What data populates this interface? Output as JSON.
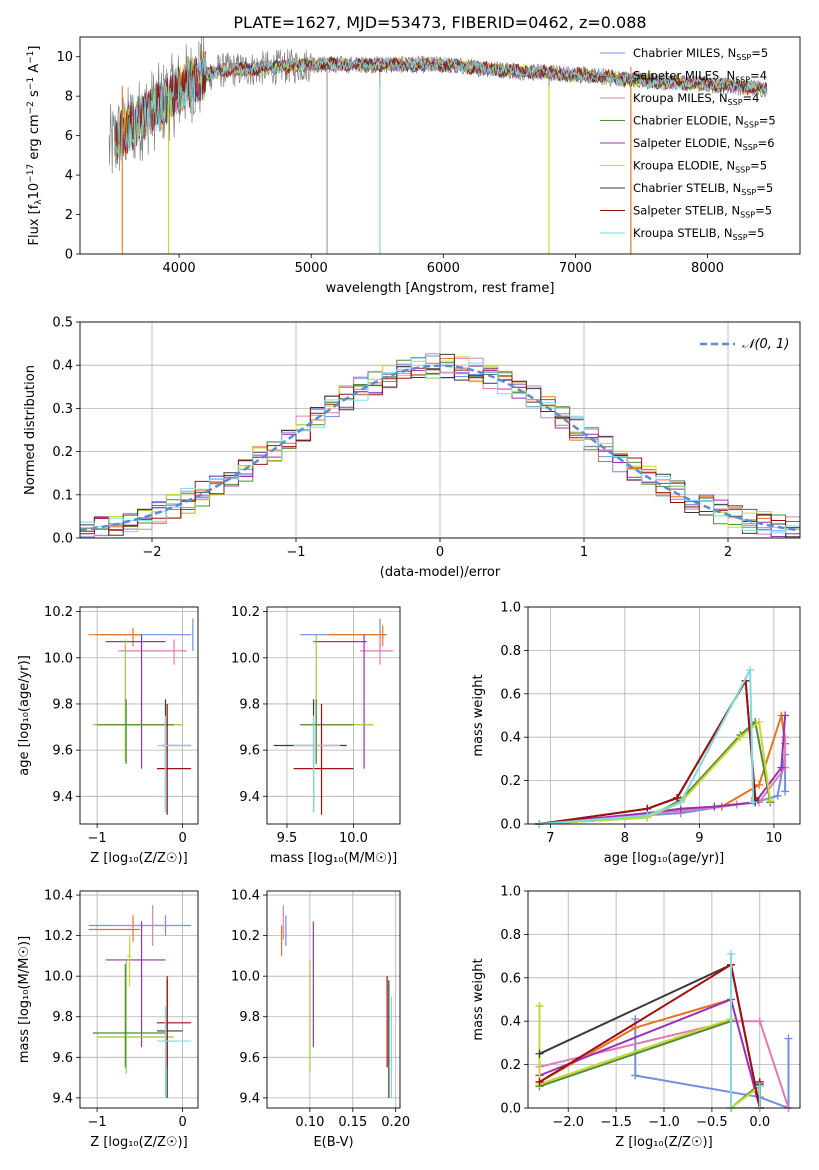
{
  "title": "PLATE=1627, MJD=53473, FIBERID=0462, z=0.088",
  "colors": {
    "c0": "#6f8fe0",
    "c1": "#e8731f",
    "c2": "#e07bb4",
    "c3": "#4f8a3e",
    "c4": "#9b30b8",
    "c5": "#c8d830",
    "c6": "#3a3a3a",
    "c7": "#a01010",
    "c8": "#7ddbe0",
    "c9": "#9acd32",
    "grey": "#808080"
  },
  "spectrum_legend": [
    {
      "model": "Chabrier MILES",
      "n": "5"
    },
    {
      "model": "Salpeter MILES",
      "n": "4"
    },
    {
      "model": "Kroupa MILES",
      "n": "4"
    },
    {
      "model": "Chabrier ELODIE",
      "n": "5"
    },
    {
      "model": "Salpeter ELODIE",
      "n": "6"
    },
    {
      "model": "Kroupa ELODIE",
      "n": "5"
    },
    {
      "model": "Chabrier STELIB",
      "n": "5"
    },
    {
      "model": "Salpeter STELIB",
      "n": "5"
    },
    {
      "model": "Kroupa STELIB",
      "n": "5"
    }
  ],
  "chart_data": [
    {
      "type": "line",
      "panel": "spectrum",
      "title": "PLATE=1627, MJD=53473, FIBERID=0462, z=0.088",
      "xlabel": "wavelength [Angstrom, rest frame]",
      "ylabel_main": "Flux [f",
      "ylabel_rest": "10",
      "ylabel_exp1": "−17",
      "ylabel_unit": " erg cm",
      "ylabel_exp2": "−2",
      "ylabel_s": " s",
      "ylabel_exp3": "−1",
      "ylabel_A": " A",
      "ylabel_exp4": "−1",
      "ylabel_close": "]",
      "xlim": [
        3250,
        8700
      ],
      "ylim": [
        0,
        11
      ],
      "xticks": [
        4000,
        5000,
        6000,
        7000,
        8000
      ],
      "yticks": [
        0,
        2,
        4,
        6,
        8,
        10
      ],
      "continuum": {
        "x": [
          3450,
          3600,
          3800,
          3950,
          4100,
          4300,
          4600,
          5000,
          5500,
          6000,
          6500,
          7000,
          7500,
          8000,
          8400
        ],
        "y": [
          5.2,
          6.3,
          7.3,
          8.0,
          8.8,
          9.3,
          9.4,
          9.6,
          9.6,
          9.6,
          9.3,
          9.1,
          8.8,
          8.6,
          8.4
        ]
      },
      "data_spikes_x": [
        5120,
        5520,
        6800,
        7420
      ]
    },
    {
      "type": "bar",
      "panel": "residual-histogram",
      "xlabel": "(data-model)/error",
      "ylabel": "Normed distribution",
      "xlim": [
        -2.5,
        2.5
      ],
      "ylim": [
        0,
        0.5
      ],
      "xticks": [
        -2,
        -1,
        0,
        1,
        2
      ],
      "yticks": [
        0.0,
        0.1,
        0.2,
        0.3,
        0.4,
        0.5
      ],
      "legend": "𝒩(0, 1)",
      "bins": [
        -2.5,
        2.5,
        50
      ],
      "series_values": [
        [
          0.03,
          0.04,
          0.04,
          0.05,
          0.06,
          0.07,
          0.09,
          0.11,
          0.13,
          0.16,
          0.19,
          0.22,
          0.25,
          0.28,
          0.31,
          0.33,
          0.35,
          0.37,
          0.38,
          0.39,
          0.4,
          0.4,
          0.39,
          0.38,
          0.37,
          0.35,
          0.33,
          0.31,
          0.28,
          0.25,
          0.22,
          0.19,
          0.16,
          0.13,
          0.11,
          0.09,
          0.07,
          0.06,
          0.05,
          0.04,
          0.03,
          0.03,
          0.02,
          0.02,
          0.02,
          0.02,
          0.02,
          0.02,
          0.02,
          0.02
        ]
      ]
    },
    {
      "type": "scatter",
      "panel": "age-vs-metallicity",
      "xlabel": "Z [log₁₀(Z/Z☉)]",
      "ylabel": "age  [log₁₀(age/yr)]",
      "xlim": [
        -1.2,
        0.18
      ],
      "ylim": [
        9.28,
        10.22
      ],
      "xticks": [
        -1,
        0
      ],
      "yticks": [
        9.4,
        9.6,
        9.8,
        10.0,
        10.2
      ]
    },
    {
      "type": "scatter",
      "panel": "age-vs-mass",
      "xlabel": "mass [log₁₀(M/M☉)]",
      "ylabel": "",
      "xlim": [
        9.35,
        10.35
      ],
      "ylim": [
        9.28,
        10.22
      ],
      "xticks": [
        9.5,
        10.0
      ],
      "yticks": [
        9.4,
        9.6,
        9.8,
        10.0,
        10.2
      ]
    },
    {
      "type": "line",
      "panel": "weight-vs-age",
      "xlabel": "age  [log₁₀(age/yr)]",
      "ylabel": "mass weight",
      "xlim": [
        6.7,
        10.35
      ],
      "ylim": [
        0,
        1
      ],
      "xticks": [
        7,
        8,
        9,
        10
      ],
      "yticks": [
        0.0,
        0.2,
        0.4,
        0.6,
        0.8,
        1.0
      ]
    },
    {
      "type": "scatter",
      "panel": "mass-vs-metallicity",
      "xlabel": "Z [log₁₀(Z/Z☉)]",
      "ylabel": "mass [log₁₀(M/M☉)]",
      "xlim": [
        -1.2,
        0.18
      ],
      "ylim": [
        9.35,
        10.42
      ],
      "xticks": [
        -1,
        0
      ],
      "yticks": [
        9.4,
        9.6,
        9.8,
        10.0,
        10.2,
        10.4
      ]
    },
    {
      "type": "scatter",
      "panel": "mass-vs-ebv",
      "xlabel": "E(B-V)",
      "ylabel": "",
      "xlim": [
        0.05,
        0.205
      ],
      "ylim": [
        9.35,
        10.42
      ],
      "xticks": [
        0.1,
        0.15,
        0.2
      ],
      "yticks": [
        9.4,
        9.6,
        9.8,
        10.0,
        10.2,
        10.4
      ]
    },
    {
      "type": "line",
      "panel": "weight-vs-metallicity",
      "xlabel": "Z [log₁₀(Z/Z☉)]",
      "ylabel": "mass weight",
      "xlim": [
        -2.42,
        0.42
      ],
      "ylim": [
        0,
        1
      ],
      "xticks": [
        -2.0,
        -1.5,
        -1.0,
        -0.5,
        0.0
      ],
      "yticks": [
        0.0,
        0.2,
        0.4,
        0.6,
        0.8,
        1.0
      ]
    }
  ],
  "crosses_age_Z": [
    {
      "c": "c0",
      "x": 0.12,
      "y": 10.1,
      "xe": [
        -1.0,
        0.1
      ],
      "ye": [
        10.03,
        10.17
      ]
    },
    {
      "c": "c1",
      "x": -0.58,
      "y": 10.1,
      "xe": [
        -1.1,
        -0.5
      ],
      "ye": [
        10.05,
        10.13
      ]
    },
    {
      "c": "c2",
      "x": -0.1,
      "y": 10.03,
      "xe": [
        -0.75,
        0.05
      ],
      "ye": [
        9.97,
        10.08
      ]
    },
    {
      "c": "c4",
      "x": -0.48,
      "y": 10.07,
      "xe": [
        -0.9,
        -0.2
      ],
      "ye": [
        9.52,
        10.1
      ]
    },
    {
      "c": "c9",
      "x": -0.67,
      "y": 9.71,
      "xe": [
        -1.05,
        0.0
      ],
      "ye": [
        9.55,
        10.08
      ]
    },
    {
      "c": "c3",
      "x": -0.66,
      "y": 9.71,
      "xe": [
        -1.0,
        -0.1
      ],
      "ye": [
        9.54,
        9.82
      ]
    },
    {
      "c": "c6",
      "x": -0.2,
      "y": 9.62,
      "xe": [
        -0.25,
        0.1
      ],
      "ye": [
        9.33,
        9.82
      ]
    },
    {
      "c": "c7",
      "x": -0.18,
      "y": 9.52,
      "xe": [
        -0.3,
        0.1
      ],
      "ye": [
        9.32,
        9.8
      ]
    },
    {
      "c": "c8",
      "x": -0.2,
      "y": 9.62,
      "xe": [
        -0.3,
        0.1
      ],
      "ye": [
        9.33,
        9.75
      ]
    }
  ],
  "crosses_age_mass": [
    {
      "c": "c0",
      "x": 10.2,
      "y": 10.1,
      "xe": [
        9.6,
        10.25
      ],
      "ye": [
        10.03,
        10.17
      ]
    },
    {
      "c": "c1",
      "x": 10.22,
      "y": 10.1,
      "xe": [
        9.8,
        10.25
      ],
      "ye": [
        10.05,
        10.14
      ]
    },
    {
      "c": "c2",
      "x": 10.2,
      "y": 10.03,
      "xe": [
        10.05,
        10.3
      ],
      "ye": [
        9.97,
        10.1
      ]
    },
    {
      "c": "c4",
      "x": 10.08,
      "y": 10.07,
      "xe": [
        9.7,
        10.1
      ],
      "ye": [
        9.52,
        10.1
      ]
    },
    {
      "c": "c9",
      "x": 9.72,
      "y": 9.71,
      "xe": [
        9.6,
        10.15
      ],
      "ye": [
        9.55,
        10.1
      ]
    },
    {
      "c": "c3",
      "x": 9.72,
      "y": 9.71,
      "xe": [
        9.6,
        10.0
      ],
      "ye": [
        9.54,
        9.82
      ]
    },
    {
      "c": "c6",
      "x": 9.7,
      "y": 9.62,
      "xe": [
        9.4,
        9.95
      ],
      "ye": [
        9.33,
        9.82
      ]
    },
    {
      "c": "c7",
      "x": 9.76,
      "y": 9.52,
      "xe": [
        9.55,
        10.0
      ],
      "ye": [
        9.32,
        9.8
      ]
    },
    {
      "c": "c8",
      "x": 9.7,
      "y": 9.62,
      "xe": [
        9.55,
        9.9
      ],
      "ye": [
        9.33,
        9.75
      ]
    }
  ],
  "weights_age": [
    {
      "c": "c0",
      "x": [
        6.85,
        8.3,
        8.75,
        9.3,
        9.75,
        10.05,
        10.15,
        10.15
      ],
      "y": [
        0.0,
        0.04,
        0.05,
        0.08,
        0.1,
        0.13,
        0.32,
        0.15
      ]
    },
    {
      "c": "c1",
      "x": [
        6.85,
        8.3,
        8.75,
        9.3,
        9.8,
        10.1,
        10.15
      ],
      "y": [
        0.0,
        0.05,
        0.07,
        0.08,
        0.18,
        0.5,
        0.37
      ]
    },
    {
      "c": "c2",
      "x": [
        6.85,
        8.3,
        8.75,
        9.5,
        9.8,
        10.15,
        10.15
      ],
      "y": [
        0.0,
        0.05,
        0.06,
        0.09,
        0.1,
        0.26,
        0.4
      ]
    },
    {
      "c": "c3",
      "x": [
        6.85,
        8.3,
        8.75,
        9.55,
        9.75,
        9.95
      ],
      "y": [
        0.0,
        0.03,
        0.11,
        0.41,
        0.47,
        0.1
      ]
    },
    {
      "c": "c4",
      "x": [
        6.85,
        8.3,
        8.75,
        9.2,
        9.75,
        10.1,
        10.15
      ],
      "y": [
        0.0,
        0.05,
        0.07,
        0.08,
        0.1,
        0.26,
        0.5
      ]
    },
    {
      "c": "c5",
      "x": [
        6.85,
        8.3,
        8.75,
        9.55,
        9.8,
        9.95
      ],
      "y": [
        0.0,
        0.03,
        0.1,
        0.4,
        0.47,
        0.11
      ]
    },
    {
      "c": "c6",
      "x": [
        6.85,
        8.3,
        8.7,
        9.62,
        9.75
      ],
      "y": [
        0.0,
        0.07,
        0.12,
        0.66,
        0.11
      ]
    },
    {
      "c": "c7",
      "x": [
        6.85,
        8.3,
        8.7,
        9.62,
        9.75
      ],
      "y": [
        0.0,
        0.07,
        0.12,
        0.66,
        0.12
      ]
    },
    {
      "c": "c8",
      "x": [
        6.85,
        8.3,
        8.75,
        9.68,
        9.72
      ],
      "y": [
        0.0,
        0.04,
        0.1,
        0.71,
        0.1
      ]
    }
  ],
  "crosses_mass_Z": [
    {
      "c": "c0",
      "x": -0.2,
      "y": 10.25,
      "xe": [
        -1.1,
        0.1
      ],
      "ye": [
        10.2,
        10.3
      ]
    },
    {
      "c": "c1",
      "x": -0.58,
      "y": 10.23,
      "xe": [
        -1.1,
        -0.5
      ],
      "ye": [
        10.17,
        10.3
      ]
    },
    {
      "c": "c2",
      "x": -0.35,
      "y": 10.25,
      "xe": [
        -0.85,
        0.0
      ],
      "ye": [
        10.15,
        10.35
      ]
    },
    {
      "c": "c4",
      "x": -0.48,
      "y": 10.08,
      "xe": [
        -0.9,
        -0.2
      ],
      "ye": [
        9.65,
        10.27
      ]
    },
    {
      "c": "c5",
      "x": -0.62,
      "y": 10.1,
      "xe": [
        -0.65,
        -0.6
      ],
      "ye": [
        9.95,
        10.2
      ]
    },
    {
      "c": "c9",
      "x": -0.66,
      "y": 9.7,
      "xe": [
        -1.0,
        -0.1
      ],
      "ye": [
        9.52,
        10.08
      ]
    },
    {
      "c": "c3",
      "x": -0.67,
      "y": 9.72,
      "xe": [
        -1.05,
        -0.2
      ],
      "ye": [
        9.55,
        10.06
      ]
    },
    {
      "c": "c6",
      "x": -0.18,
      "y": 9.73,
      "xe": [
        -0.3,
        0.0
      ],
      "ye": [
        9.4,
        9.98
      ]
    },
    {
      "c": "c7",
      "x": -0.18,
      "y": 9.77,
      "xe": [
        -0.3,
        0.1
      ],
      "ye": [
        9.55,
        10.0
      ]
    },
    {
      "c": "c8",
      "x": -0.2,
      "y": 9.68,
      "xe": [
        -0.3,
        0.1
      ],
      "ye": [
        9.4,
        9.85
      ]
    }
  ],
  "crosses_mass_ebv": [
    {
      "c": "c1",
      "x": 0.067,
      "y": 10.2,
      "ye": [
        10.1,
        10.25
      ]
    },
    {
      "c": "c2",
      "x": 0.069,
      "y": 10.27,
      "ye": [
        10.18,
        10.35
      ]
    },
    {
      "c": "c0",
      "x": 0.072,
      "y": 10.24,
      "ye": [
        10.15,
        10.3
      ]
    },
    {
      "c": "c4",
      "x": 0.104,
      "y": 10.08,
      "ye": [
        9.65,
        10.27
      ]
    },
    {
      "c": "c9",
      "x": 0.1,
      "y": 9.72,
      "ye": [
        9.53,
        10.08
      ]
    },
    {
      "c": "c7",
      "x": 0.19,
      "y": 9.77,
      "ye": [
        9.55,
        10.0
      ]
    },
    {
      "c": "c6",
      "x": 0.192,
      "y": 9.73,
      "ye": [
        9.4,
        9.98
      ]
    },
    {
      "c": "c8",
      "x": 0.195,
      "y": 9.68,
      "ye": [
        9.4,
        9.9
      ]
    }
  ],
  "weights_Z": [
    {
      "c": "c0",
      "x": [
        -1.3,
        -1.3,
        0.0,
        0.3,
        0.3
      ],
      "y": [
        0.41,
        0.15,
        0.05,
        0.0,
        0.32
      ]
    },
    {
      "c": "c1",
      "x": [
        -2.3,
        -1.3,
        -0.3,
        -0.3,
        0.0,
        0.0
      ],
      "y": [
        0.12,
        0.37,
        0.5,
        0.0,
        0.0,
        0.1
      ]
    },
    {
      "c": "c2",
      "x": [
        -2.3,
        -0.3,
        0.0,
        0.3
      ],
      "y": [
        0.19,
        0.4,
        0.4,
        0.0
      ]
    },
    {
      "c": "c3",
      "x": [
        -2.3,
        -2.3,
        -0.3,
        -0.3,
        0.0
      ],
      "y": [
        0.47,
        0.1,
        0.4,
        0.0,
        0.11
      ]
    },
    {
      "c": "c4",
      "x": [
        -2.3,
        -0.3,
        0.0,
        0.0
      ],
      "y": [
        0.15,
        0.5,
        0.0,
        0.1
      ]
    },
    {
      "c": "c5",
      "x": [
        -2.3,
        -2.3,
        -0.3,
        -0.3,
        0.0
      ],
      "y": [
        0.47,
        0.11,
        0.41,
        0.0,
        0.1
      ]
    },
    {
      "c": "c6",
      "x": [
        -2.3,
        -0.3,
        0.0,
        0.0
      ],
      "y": [
        0.25,
        0.66,
        0.0,
        0.11
      ]
    },
    {
      "c": "c7",
      "x": [
        -2.3,
        -0.3,
        0.0,
        0.0
      ],
      "y": [
        0.12,
        0.66,
        0.0,
        0.12
      ]
    },
    {
      "c": "c8",
      "x": [
        -0.3,
        -0.3,
        0.0,
        0.0
      ],
      "y": [
        0.71,
        0.0,
        0.0,
        0.1
      ]
    }
  ]
}
